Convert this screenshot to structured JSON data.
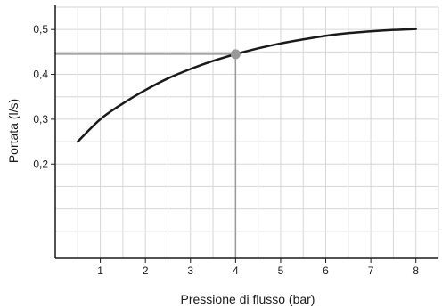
{
  "chart_data": {
    "type": "line",
    "title": "",
    "xlabel": "Pressione di flusso (bar)",
    "ylabel": "Portata (l/s)",
    "xlim": [
      0,
      8.5
    ],
    "ylim": [
      -0.01,
      0.55
    ],
    "grid": true,
    "x_ticks": [
      1,
      2,
      3,
      4,
      5,
      6,
      7,
      8
    ],
    "x_tick_labels": [
      "1",
      "2",
      "3",
      "4",
      "5",
      "6",
      "7",
      "8"
    ],
    "y_ticks": [
      0.2,
      0.3,
      0.4,
      0.5
    ],
    "y_tick_labels": [
      "0,2",
      "0,3",
      "0,4",
      "0,5"
    ],
    "series": [
      {
        "x": [
          0.5,
          1.0,
          1.5,
          2.0,
          2.5,
          3.0,
          3.5,
          4.0,
          4.5,
          5.0,
          5.5,
          6.0,
          6.5,
          7.0,
          7.5,
          8.0
        ],
        "y": [
          0.25,
          0.3,
          0.335,
          0.365,
          0.391,
          0.412,
          0.43,
          0.445,
          0.458,
          0.469,
          0.478,
          0.486,
          0.492,
          0.496,
          0.499,
          0.501
        ],
        "color": "#1a1a1a"
      }
    ],
    "highlight": {
      "x": 4,
      "y": 0.445,
      "color": "#999999"
    }
  }
}
